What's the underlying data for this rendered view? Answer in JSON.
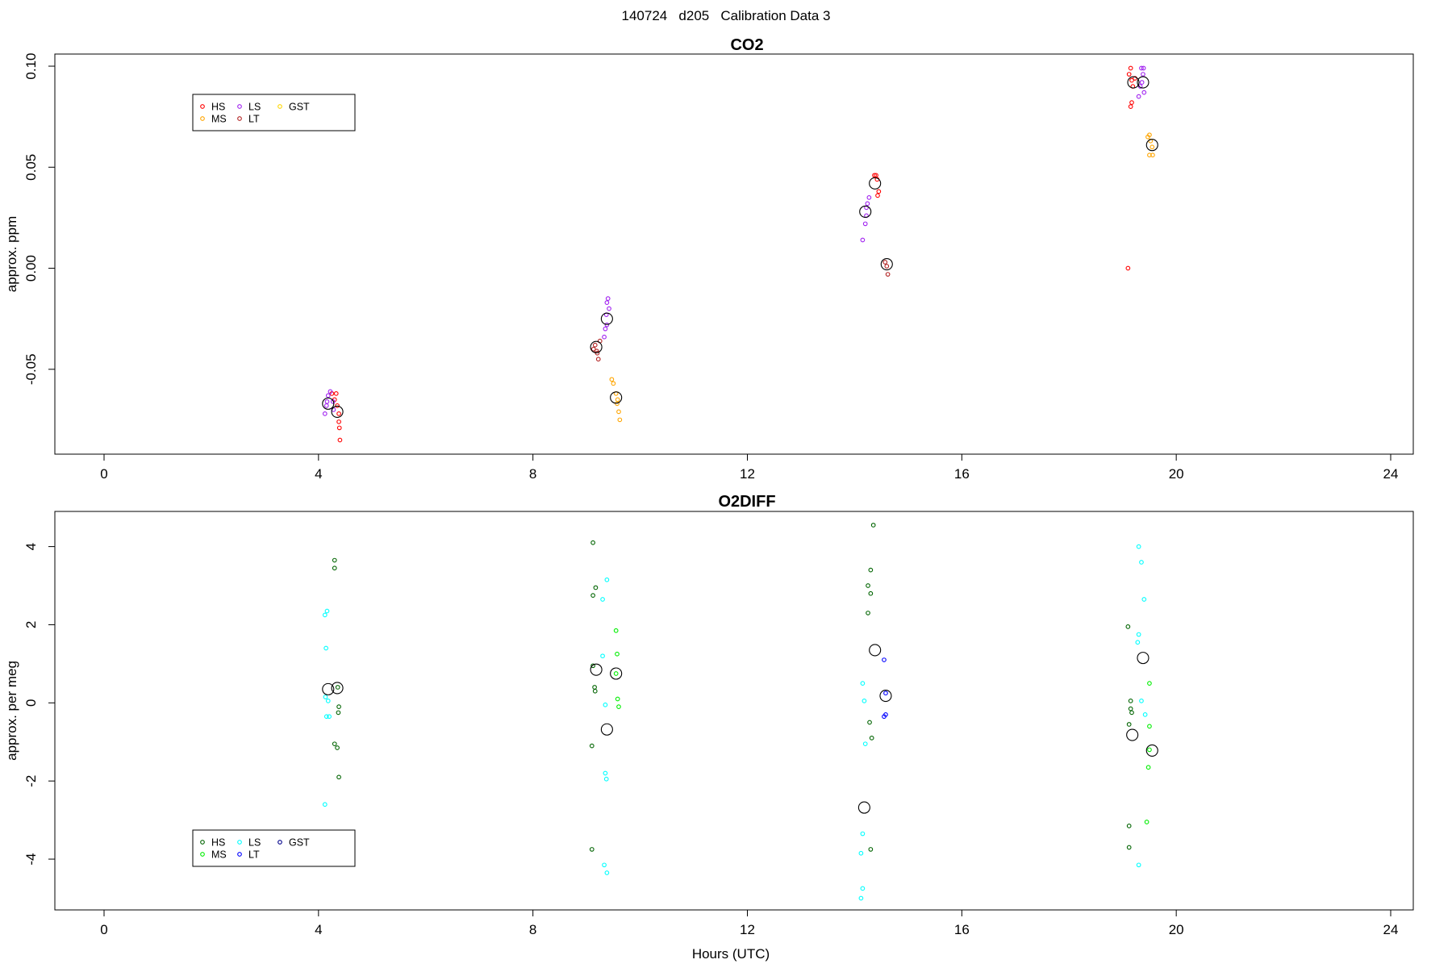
{
  "title": "140724   d205   Calibration Data 3",
  "xlabel": "Hours (UTC)",
  "chart_data": [
    {
      "type": "scatter",
      "title": "CO2",
      "xlabel": "",
      "ylabel": "approx. ppm",
      "xlim": [
        0,
        24
      ],
      "ylim": [
        -0.092,
        0.106
      ],
      "x_ticks": [
        "0",
        "4",
        "8",
        "12",
        "16",
        "20",
        "24"
      ],
      "y_ticks": [
        "-0.05",
        "0.00",
        "0.05",
        "0.10"
      ],
      "y_tick_values": [
        -0.05,
        0.0,
        0.05,
        0.1
      ],
      "legend": {
        "placement": "top-left",
        "columns": 3
      },
      "series": [
        {
          "name": "HS",
          "color": "#ff0000",
          "points": [
            [
              4.25,
              -0.062
            ],
            [
              4.3,
              -0.065
            ],
            [
              4.33,
              -0.062
            ],
            [
              4.35,
              -0.068
            ],
            [
              4.38,
              -0.072
            ],
            [
              4.38,
              -0.076
            ],
            [
              4.39,
              -0.079
            ],
            [
              4.4,
              -0.085
            ],
            [
              19.1,
              -0.0
            ],
            [
              19.12,
              0.096
            ],
            [
              19.15,
              0.099
            ],
            [
              19.17,
              0.093
            ],
            [
              19.19,
              0.09
            ],
            [
              19.17,
              0.082
            ],
            [
              19.15,
              0.08
            ],
            [
              19.23,
              0.094
            ],
            [
              14.37,
              0.046
            ],
            [
              14.4,
              0.046
            ],
            [
              14.42,
              0.044
            ],
            [
              14.45,
              0.038
            ],
            [
              14.43,
              0.036
            ]
          ]
        },
        {
          "name": "MS",
          "color": "#ffa500",
          "points": [
            [
              9.47,
              -0.055
            ],
            [
              9.5,
              -0.057
            ],
            [
              9.55,
              -0.062
            ],
            [
              9.57,
              -0.067
            ],
            [
              9.6,
              -0.071
            ],
            [
              9.62,
              -0.075
            ],
            [
              9.58,
              -0.065
            ],
            [
              19.47,
              0.065
            ],
            [
              19.5,
              0.066
            ],
            [
              19.52,
              0.063
            ],
            [
              19.5,
              0.056
            ],
            [
              19.56,
              0.056
            ],
            [
              19.55,
              0.06
            ]
          ]
        },
        {
          "name": "LS",
          "color": "#a020f0",
          "points": [
            [
              4.12,
              -0.072
            ],
            [
              4.15,
              -0.068
            ],
            [
              4.18,
              -0.063
            ],
            [
              4.22,
              -0.061
            ],
            [
              4.27,
              -0.066
            ],
            [
              4.28,
              -0.07
            ],
            [
              4.16,
              -0.066
            ],
            [
              9.33,
              -0.034
            ],
            [
              9.35,
              -0.03
            ],
            [
              9.37,
              -0.023
            ],
            [
              9.38,
              -0.017
            ],
            [
              9.4,
              -0.015
            ],
            [
              9.42,
              -0.02
            ],
            [
              9.38,
              -0.028
            ],
            [
              14.15,
              0.014
            ],
            [
              14.2,
              0.022
            ],
            [
              14.22,
              0.026
            ],
            [
              14.24,
              0.032
            ],
            [
              14.27,
              0.035
            ],
            [
              14.22,
              0.03
            ],
            [
              19.3,
              0.085
            ],
            [
              19.33,
              0.09
            ],
            [
              19.36,
              0.092
            ],
            [
              19.38,
              0.096
            ],
            [
              19.39,
              0.099
            ],
            [
              19.4,
              0.087
            ],
            [
              19.35,
              0.099
            ]
          ]
        },
        {
          "name": "LT",
          "color": "#b22222",
          "points": [
            [
              9.13,
              -0.04
            ],
            [
              9.16,
              -0.038
            ],
            [
              9.2,
              -0.042
            ],
            [
              9.22,
              -0.045
            ],
            [
              9.25,
              -0.036
            ],
            [
              9.19,
              -0.041
            ],
            [
              14.57,
              0.003
            ],
            [
              14.6,
              0.001
            ],
            [
              14.62,
              -0.003
            ]
          ]
        },
        {
          "name": "GST",
          "color": "#ffd700",
          "points": []
        }
      ],
      "means": [
        [
          4.18,
          -0.067
        ],
        [
          4.35,
          -0.071
        ],
        [
          9.18,
          -0.039
        ],
        [
          9.38,
          -0.025
        ],
        [
          9.55,
          -0.064
        ],
        [
          14.2,
          0.028
        ],
        [
          14.38,
          0.042
        ],
        [
          14.6,
          0.002
        ],
        [
          19.2,
          0.092
        ],
        [
          19.38,
          0.092
        ],
        [
          19.55,
          0.061
        ]
      ]
    },
    {
      "type": "scatter",
      "title": "O2DIFF",
      "xlabel": "Hours (UTC)",
      "ylabel": "approx. per meg",
      "xlim": [
        0,
        24
      ],
      "ylim": [
        -5.3,
        4.9
      ],
      "x_ticks": [
        "0",
        "4",
        "8",
        "12",
        "16",
        "20",
        "24"
      ],
      "y_ticks": [
        "-4",
        "-2",
        "0",
        "2",
        "4"
      ],
      "y_tick_values": [
        -4,
        -2,
        0,
        2,
        4
      ],
      "legend": {
        "placement": "bottom-left",
        "columns": 3
      },
      "series": [
        {
          "name": "HS",
          "color": "#006400",
          "points": [
            [
              4.3,
              3.65
            ],
            [
              4.3,
              3.45
            ],
            [
              4.3,
              -1.05
            ],
            [
              4.35,
              -1.15
            ],
            [
              4.37,
              -0.25
            ],
            [
              4.38,
              -0.1
            ],
            [
              4.36,
              0.4
            ],
            [
              4.38,
              -1.9
            ],
            [
              9.12,
              4.1
            ],
            [
              9.17,
              2.95
            ],
            [
              9.12,
              2.75
            ],
            [
              9.12,
              0.95
            ],
            [
              9.15,
              0.4
            ],
            [
              9.16,
              0.3
            ],
            [
              9.1,
              -1.1
            ],
            [
              9.1,
              -3.75
            ],
            [
              14.25,
              3.0
            ],
            [
              14.3,
              3.4
            ],
            [
              14.3,
              2.8
            ],
            [
              14.25,
              2.3
            ],
            [
              14.28,
              -0.5
            ],
            [
              14.32,
              -0.9
            ],
            [
              14.3,
              -3.75
            ],
            [
              14.35,
              4.55
            ],
            [
              19.1,
              1.95
            ],
            [
              19.15,
              0.05
            ],
            [
              19.15,
              -0.15
            ],
            [
              19.17,
              -0.25
            ],
            [
              19.12,
              -0.55
            ],
            [
              19.12,
              -3.15
            ],
            [
              19.12,
              -3.7
            ]
          ]
        },
        {
          "name": "MS",
          "color": "#00ee00",
          "points": [
            [
              9.55,
              1.85
            ],
            [
              9.57,
              1.25
            ],
            [
              9.58,
              0.1
            ],
            [
              9.6,
              -0.1
            ],
            [
              9.55,
              0.75
            ],
            [
              19.5,
              0.5
            ],
            [
              19.5,
              -0.6
            ],
            [
              19.48,
              -1.65
            ],
            [
              19.45,
              -3.05
            ],
            [
              19.5,
              -1.2
            ]
          ]
        },
        {
          "name": "LS",
          "color": "#00ffff",
          "points": [
            [
              4.12,
              2.25
            ],
            [
              4.16,
              2.35
            ],
            [
              4.14,
              1.4
            ],
            [
              4.13,
              0.15
            ],
            [
              4.18,
              0.05
            ],
            [
              4.15,
              -0.35
            ],
            [
              4.2,
              -0.35
            ],
            [
              4.12,
              -2.6
            ],
            [
              9.3,
              2.65
            ],
            [
              9.38,
              3.15
            ],
            [
              9.3,
              1.2
            ],
            [
              9.35,
              -0.05
            ],
            [
              9.35,
              -1.8
            ],
            [
              9.37,
              -1.95
            ],
            [
              9.33,
              -4.15
            ],
            [
              9.38,
              -4.35
            ],
            [
              14.15,
              0.5
            ],
            [
              14.18,
              0.05
            ],
            [
              14.2,
              -1.05
            ],
            [
              14.15,
              -3.35
            ],
            [
              14.12,
              -3.85
            ],
            [
              14.15,
              -4.75
            ],
            [
              14.12,
              -5.0
            ],
            [
              19.3,
              4.0
            ],
            [
              19.35,
              3.6
            ],
            [
              19.4,
              2.65
            ],
            [
              19.3,
              1.75
            ],
            [
              19.28,
              1.55
            ],
            [
              19.35,
              0.05
            ],
            [
              19.42,
              -0.3
            ],
            [
              19.3,
              -4.15
            ]
          ]
        },
        {
          "name": "LT",
          "color": "#0000ff",
          "points": [
            [
              14.55,
              1.1
            ],
            [
              14.58,
              0.25
            ],
            [
              14.58,
              -0.3
            ],
            [
              14.55,
              -0.35
            ]
          ]
        },
        {
          "name": "GST",
          "color": "#00008b",
          "points": []
        }
      ],
      "means": [
        [
          4.18,
          0.35
        ],
        [
          4.35,
          0.38
        ],
        [
          9.18,
          0.85
        ],
        [
          9.55,
          0.75
        ],
        [
          9.38,
          -0.68
        ],
        [
          14.38,
          1.35
        ],
        [
          14.58,
          0.18
        ],
        [
          14.18,
          -2.68
        ],
        [
          19.38,
          1.15
        ],
        [
          19.18,
          -0.82
        ],
        [
          19.55,
          -1.22
        ]
      ]
    }
  ]
}
